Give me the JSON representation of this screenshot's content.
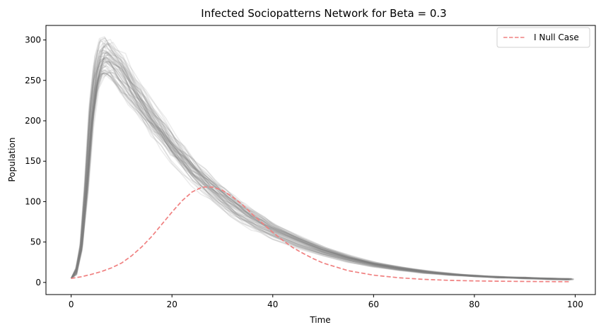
{
  "chart_data": {
    "type": "line",
    "title": "Infected Sociopatterns Network for Beta = 0.3",
    "xlabel": "Time",
    "ylabel": "Population",
    "xlim": [
      -5,
      104
    ],
    "ylim": [
      -15,
      318
    ],
    "xticks": [
      0,
      20,
      40,
      60,
      80,
      100
    ],
    "yticks": [
      0,
      50,
      100,
      150,
      200,
      250,
      300
    ],
    "legend_position": "top-right",
    "grid": false,
    "simulation_runs": {
      "description_visible": false,
      "count": 60,
      "color": "#808080",
      "opacity": 0.15,
      "template": {
        "x": [
          0,
          1,
          2,
          3,
          4,
          5,
          6,
          7,
          8,
          10,
          12,
          14,
          16,
          18,
          20,
          22,
          24,
          26,
          28,
          30,
          32,
          34,
          36,
          38,
          40,
          45,
          50,
          55,
          60,
          65,
          70,
          75,
          80,
          85,
          90,
          95,
          99
        ],
        "y": [
          5,
          14,
          45,
          120,
          210,
          262,
          283,
          285,
          280,
          265,
          245,
          225,
          205,
          188,
          170,
          155,
          140,
          127,
          115,
          104,
          94,
          85,
          77,
          70,
          63,
          50,
          38,
          29,
          22,
          17,
          13,
          10,
          8,
          6.5,
          5.5,
          4.5,
          4
        ]
      }
    },
    "series": [
      {
        "name": "I Null Case",
        "color": "#f08080",
        "dash": "dashed",
        "x": [
          0,
          2,
          4,
          6,
          8,
          10,
          12,
          14,
          16,
          18,
          20,
          22,
          24,
          26,
          28,
          30,
          32,
          34,
          36,
          38,
          40,
          42,
          44,
          46,
          48,
          50,
          55,
          60,
          65,
          70,
          75,
          80,
          85,
          90,
          95,
          99
        ],
        "y": [
          5,
          7,
          10,
          13.5,
          18,
          24,
          33,
          44,
          57,
          72,
          87,
          101,
          112,
          118,
          118,
          114,
          106,
          96,
          84,
          73,
          62,
          52,
          43,
          36,
          29.5,
          24,
          14.5,
          9,
          5.8,
          3.8,
          2.6,
          1.9,
          1.5,
          1.2,
          1.0,
          0.9
        ]
      }
    ]
  }
}
